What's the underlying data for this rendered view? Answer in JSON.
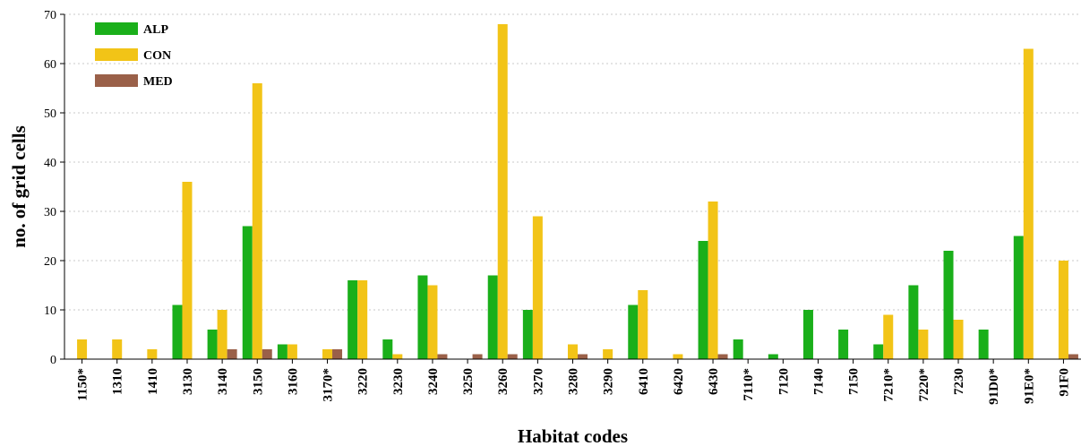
{
  "chart_data": {
    "type": "bar",
    "xlabel": "Habitat codes",
    "ylabel": "no. of grid cells",
    "ylim": [
      0,
      70
    ],
    "yticks": [
      0,
      10,
      20,
      30,
      40,
      50,
      60,
      70
    ],
    "grid": "horizontal dotted",
    "legend_position": "top-left",
    "categories": [
      "1150*",
      "1310",
      "1410",
      "3130",
      "3140",
      "3150",
      "3160",
      "3170*",
      "3220",
      "3230",
      "3240",
      "3250",
      "3260",
      "3270",
      "3280",
      "3290",
      "6410",
      "6420",
      "6430",
      "7110*",
      "7120",
      "7140",
      "7150",
      "7210*",
      "7220*",
      "7230",
      "91D0*",
      "91E0*",
      "91F0"
    ],
    "series": [
      {
        "name": "ALP",
        "color": "#1aaf1a",
        "values": [
          0,
          0,
          0,
          11,
          6,
          27,
          3,
          0,
          16,
          4,
          17,
          0,
          17,
          10,
          0,
          0,
          11,
          0,
          24,
          4,
          1,
          10,
          6,
          3,
          15,
          22,
          6,
          25,
          0
        ]
      },
      {
        "name": "CON",
        "color": "#f2c417",
        "values": [
          4,
          4,
          2,
          36,
          10,
          56,
          3,
          2,
          16,
          1,
          15,
          0,
          68,
          29,
          3,
          2,
          14,
          1,
          32,
          0,
          0,
          0,
          0,
          9,
          6,
          8,
          0,
          63,
          20
        ]
      },
      {
        "name": "MED",
        "color": "#9a6049",
        "values": [
          0,
          0,
          0,
          0,
          2,
          2,
          0,
          2,
          0,
          0,
          1,
          1,
          1,
          0,
          1,
          0,
          0,
          0,
          1,
          0,
          0,
          0,
          0,
          0,
          0,
          0,
          0,
          0,
          1
        ]
      }
    ]
  }
}
